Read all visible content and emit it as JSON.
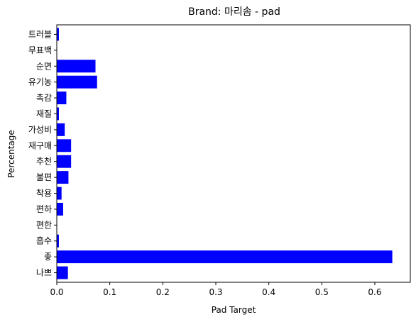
{
  "chart_data": {
    "type": "bar",
    "orientation": "horizontal",
    "title": "Brand: 마리솜 - pad",
    "xlabel": "Pad Target",
    "ylabel": "Percentage",
    "categories": [
      "나쁘",
      "좋",
      "흡수",
      "편한",
      "편하",
      "착용",
      "불편",
      "추천",
      "재구매",
      "가성비",
      "재질",
      "촉감",
      "유기농",
      "순면",
      "무표백",
      "트러블"
    ],
    "values": [
      0.021,
      0.633,
      0.004,
      0.0,
      0.012,
      0.009,
      0.022,
      0.027,
      0.027,
      0.015,
      0.004,
      0.018,
      0.076,
      0.073,
      0.0,
      0.004
    ],
    "xlim": [
      0,
      0.667
    ],
    "xticks": [
      0.0,
      0.1,
      0.2,
      0.3,
      0.4,
      0.5,
      0.6
    ],
    "xtick_labels": [
      "0.0",
      "0.1",
      "0.2",
      "0.3",
      "0.4",
      "0.5",
      "0.6"
    ],
    "bar_color": "#0000ff",
    "grid": false,
    "legend": "none"
  }
}
